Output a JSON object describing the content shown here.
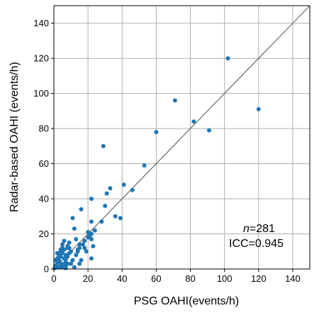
{
  "chart_data": {
    "type": "scatter",
    "title": "",
    "xlabel": "PSG OAHI(events/h)",
    "ylabel": "Radar-based OAHI (events/h)",
    "xlim": [
      0,
      150
    ],
    "ylim": [
      0,
      150
    ],
    "xticks": [
      0,
      20,
      40,
      60,
      80,
      100,
      120,
      140
    ],
    "yticks": [
      0,
      20,
      40,
      60,
      80,
      100,
      120,
      140
    ],
    "grid": true,
    "point_color": "#1f77b4",
    "line_color": "#666666",
    "reference_line": {
      "x": [
        0,
        150
      ],
      "y": [
        0,
        150
      ]
    },
    "annotation": {
      "n_label": "n",
      "n_value": "=281",
      "icc": "ICC=0.945"
    },
    "series": [
      {
        "x": [
          102,
          120,
          71,
          82,
          91,
          60,
          29,
          53,
          41,
          46,
          36,
          39,
          33,
          31,
          30,
          22,
          22,
          22,
          16,
          11,
          12,
          21,
          24,
          22,
          20,
          18,
          17,
          15,
          14,
          13,
          11,
          10,
          9,
          8,
          8,
          7,
          7,
          6,
          6,
          5,
          5,
          4,
          4,
          4,
          3,
          3,
          3,
          2,
          2,
          2,
          1,
          1,
          1,
          0.5,
          5,
          6,
          7,
          8,
          9,
          10,
          12,
          13,
          14,
          15,
          16,
          18,
          19,
          20,
          23,
          7,
          8,
          6,
          5,
          4,
          3,
          2,
          6,
          7,
          9,
          15,
          22,
          28
        ],
        "y": [
          120,
          91,
          96,
          84,
          79,
          78,
          70,
          59,
          48,
          45,
          30,
          29,
          46,
          43,
          36,
          40,
          27,
          20,
          34,
          29,
          23,
          19,
          22,
          17,
          18,
          16,
          14,
          12,
          11,
          17,
          5,
          10,
          15,
          13,
          3,
          8,
          2,
          11,
          6,
          9,
          1,
          7,
          3,
          10,
          5,
          1,
          8,
          4,
          9,
          1,
          2,
          5,
          1,
          0.5,
          14,
          16,
          4,
          7,
          12,
          3,
          1,
          8,
          10,
          14,
          5,
          12,
          10,
          21,
          13,
          6,
          12,
          3,
          12,
          11,
          7,
          6,
          2,
          0.5,
          9,
          3,
          6,
          27
        ]
      }
    ]
  }
}
